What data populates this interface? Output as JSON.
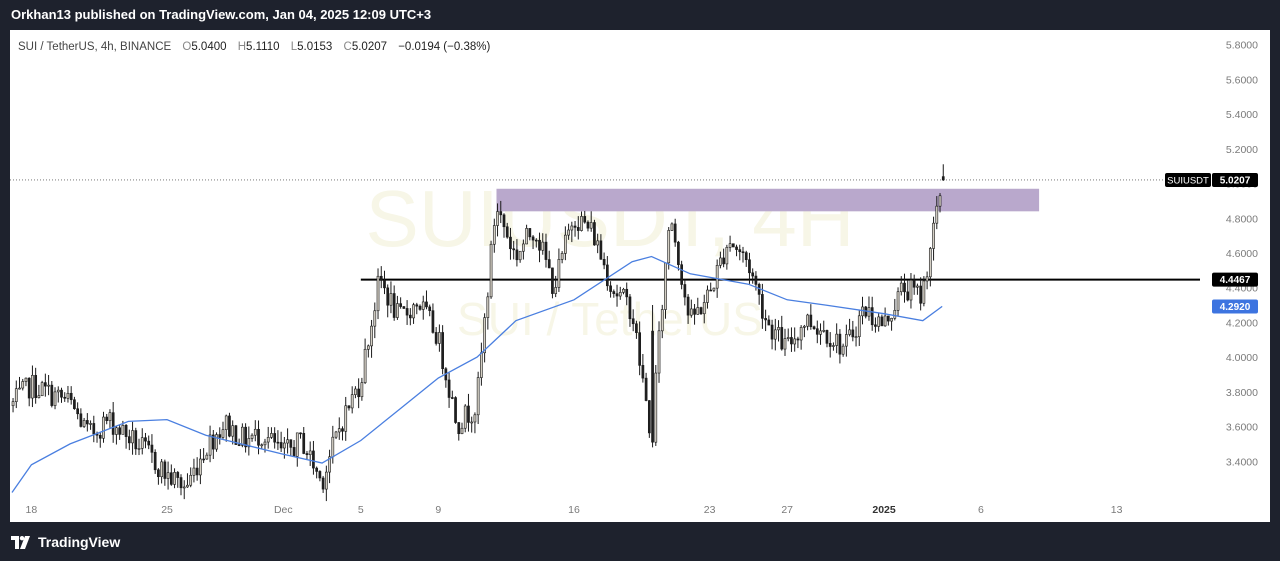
{
  "publisher_line": "Orkhan13 published on TradingView.com, Jan 04, 2025 12:09 UTC+3",
  "brand": "TradingView",
  "legend": {
    "symbol": "SUI / TetherUS, 4h, BINANCE",
    "o_label": "O",
    "o_value": "5.0400",
    "h_label": "H",
    "h_value": "5.1110",
    "l_label": "L",
    "l_value": "5.0153",
    "c_label": "C",
    "c_value": "5.0207",
    "change": "−0.0194 (−0.38%)"
  },
  "watermark": {
    "symbol": "SUIUSDT, 4H",
    "description": "SUI / TetherUS"
  },
  "colors": {
    "up": "#d4cfc4",
    "down": "#1f1f1f",
    "wick": "#1a1a1a",
    "ma": "#4a7fe0",
    "zone": "#b9a8cc",
    "level": "#000000",
    "axis_text": "#7a7a7a",
    "tag_dark": "#000000",
    "tag_blue": "#3d74e0"
  },
  "chart_data": {
    "type": "candlestick",
    "title": "SUI / TetherUS, 4h, BINANCE",
    "ylim": [
      3.2,
      5.85
    ],
    "y_ticks": [
      3.4,
      3.6,
      3.8,
      4.0,
      4.2,
      4.4,
      4.6,
      4.8,
      5.0,
      5.2,
      5.4,
      5.6,
      5.8
    ],
    "y_tick_labels": [
      "3.4000",
      "3.6000",
      "3.8000",
      "4.0000",
      "4.2000",
      "4.4000",
      "4.6000",
      "4.8000",
      "5.0000",
      "5.2000",
      "5.4000",
      "5.6000",
      "5.8000"
    ],
    "x_range": [
      "2024-11-17",
      "2025-01-14"
    ],
    "x_ticks": [
      {
        "date": "2024-11-18",
        "label": "18"
      },
      {
        "date": "2024-11-25",
        "label": "25"
      },
      {
        "date": "2024-12-01",
        "label": "Dec"
      },
      {
        "date": "2024-12-05",
        "label": "5"
      },
      {
        "date": "2024-12-09",
        "label": "9"
      },
      {
        "date": "2024-12-16",
        "label": "16"
      },
      {
        "date": "2024-12-23",
        "label": "23"
      },
      {
        "date": "2024-12-27",
        "label": "27"
      },
      {
        "date": "2025-01-01",
        "label": "2025"
      },
      {
        "date": "2025-01-06",
        "label": "6"
      },
      {
        "date": "2025-01-13",
        "label": "13"
      }
    ],
    "price_path": [
      {
        "date": "2024-11-17",
        "price": 3.72
      },
      {
        "date": "2024-11-18",
        "price": 3.84
      },
      {
        "date": "2024-11-20",
        "price": 3.74
      },
      {
        "date": "2024-11-21",
        "price": 3.55
      },
      {
        "date": "2024-11-22",
        "price": 3.64
      },
      {
        "date": "2024-11-24",
        "price": 3.45
      },
      {
        "date": "2024-11-25",
        "price": 3.32
      },
      {
        "date": "2024-11-26",
        "price": 3.25
      },
      {
        "date": "2024-11-27",
        "price": 3.48
      },
      {
        "date": "2024-11-28",
        "price": 3.62
      },
      {
        "date": "2024-11-29",
        "price": 3.52
      },
      {
        "date": "2024-11-30",
        "price": 3.56
      },
      {
        "date": "2024-12-01",
        "price": 3.44
      },
      {
        "date": "2024-12-02",
        "price": 3.52
      },
      {
        "date": "2024-12-03",
        "price": 3.28
      },
      {
        "date": "2024-12-04",
        "price": 3.62
      },
      {
        "date": "2024-12-05",
        "price": 3.86
      },
      {
        "date": "2024-12-06",
        "price": 4.45
      },
      {
        "date": "2024-12-07",
        "price": 4.22
      },
      {
        "date": "2024-12-08",
        "price": 4.32
      },
      {
        "date": "2024-12-09",
        "price": 4.12
      },
      {
        "date": "2024-12-10",
        "price": 3.62
      },
      {
        "date": "2024-12-11",
        "price": 3.72
      },
      {
        "date": "2024-12-12",
        "price": 4.88
      },
      {
        "date": "2024-12-13",
        "price": 4.58
      },
      {
        "date": "2024-12-14",
        "price": 4.75
      },
      {
        "date": "2024-12-15",
        "price": 4.4
      },
      {
        "date": "2024-12-16",
        "price": 4.82
      },
      {
        "date": "2024-12-17",
        "price": 4.72
      },
      {
        "date": "2024-12-18",
        "price": 4.4
      },
      {
        "date": "2024-12-19",
        "price": 4.28
      },
      {
        "date": "2024-12-20",
        "price": 3.55
      },
      {
        "date": "2024-12-21",
        "price": 4.85
      },
      {
        "date": "2024-12-22",
        "price": 4.2
      },
      {
        "date": "2024-12-23",
        "price": 4.36
      },
      {
        "date": "2024-12-24",
        "price": 4.68
      },
      {
        "date": "2024-12-25",
        "price": 4.55
      },
      {
        "date": "2024-12-26",
        "price": 4.2
      },
      {
        "date": "2024-12-27",
        "price": 4.05
      },
      {
        "date": "2024-12-28",
        "price": 4.22
      },
      {
        "date": "2024-12-29",
        "price": 4.15
      },
      {
        "date": "2024-12-30",
        "price": 4.05
      },
      {
        "date": "2024-12-31",
        "price": 4.28
      },
      {
        "date": "2025-01-01",
        "price": 4.18
      },
      {
        "date": "2025-01-02",
        "price": 4.4
      },
      {
        "date": "2025-01-03",
        "price": 4.35
      },
      {
        "date": "2025-01-03T12:00",
        "price": 4.7
      },
      {
        "date": "2025-01-03T20:00",
        "price": 4.85
      },
      {
        "date": "2025-01-04",
        "price": 5.02
      }
    ],
    "special_candles": [
      {
        "date": "2024-12-20",
        "open": 4.15,
        "high": 4.3,
        "low": 3.48,
        "close": 3.51
      },
      {
        "date": "2025-01-04",
        "open": 5.04,
        "high": 5.111,
        "low": 5.0153,
        "close": 5.0207
      }
    ],
    "moving_average": [
      {
        "date": "2024-11-17",
        "value": 3.22
      },
      {
        "date": "2024-11-18",
        "value": 3.38
      },
      {
        "date": "2024-11-20",
        "value": 3.5
      },
      {
        "date": "2024-11-23",
        "value": 3.63
      },
      {
        "date": "2024-11-25",
        "value": 3.64
      },
      {
        "date": "2024-11-27",
        "value": 3.55
      },
      {
        "date": "2024-12-01",
        "value": 3.44
      },
      {
        "date": "2024-12-03",
        "value": 3.39
      },
      {
        "date": "2024-12-05",
        "value": 3.52
      },
      {
        "date": "2024-12-07",
        "value": 3.7
      },
      {
        "date": "2024-12-09",
        "value": 3.88
      },
      {
        "date": "2024-12-11",
        "value": 4.0
      },
      {
        "date": "2024-12-13",
        "value": 4.21
      },
      {
        "date": "2024-12-16",
        "value": 4.33
      },
      {
        "date": "2024-12-19",
        "value": 4.55
      },
      {
        "date": "2024-12-20",
        "value": 4.58
      },
      {
        "date": "2024-12-22",
        "value": 4.48
      },
      {
        "date": "2024-12-25",
        "value": 4.42
      },
      {
        "date": "2024-12-27",
        "value": 4.33
      },
      {
        "date": "2024-12-29",
        "value": 4.3
      },
      {
        "date": "2025-01-01",
        "value": 4.25
      },
      {
        "date": "2025-01-03",
        "value": 4.21
      },
      {
        "date": "2025-01-04",
        "value": 4.292
      }
    ],
    "horizontal_level": {
      "value": 4.4467,
      "from": "2024-12-05"
    },
    "resistance_zone": {
      "low": 4.84,
      "high": 4.97,
      "from": "2024-12-12",
      "to": "2025-01-09"
    },
    "last_price": 5.0207,
    "price_tags": [
      {
        "label": "SUIUSDT",
        "value_text": "5.0207",
        "price": 5.0207
      },
      {
        "label": "",
        "value_text": "4.4467",
        "price": 4.4467
      },
      {
        "label": "",
        "value_text": "4.2920",
        "price": 4.292
      }
    ]
  }
}
